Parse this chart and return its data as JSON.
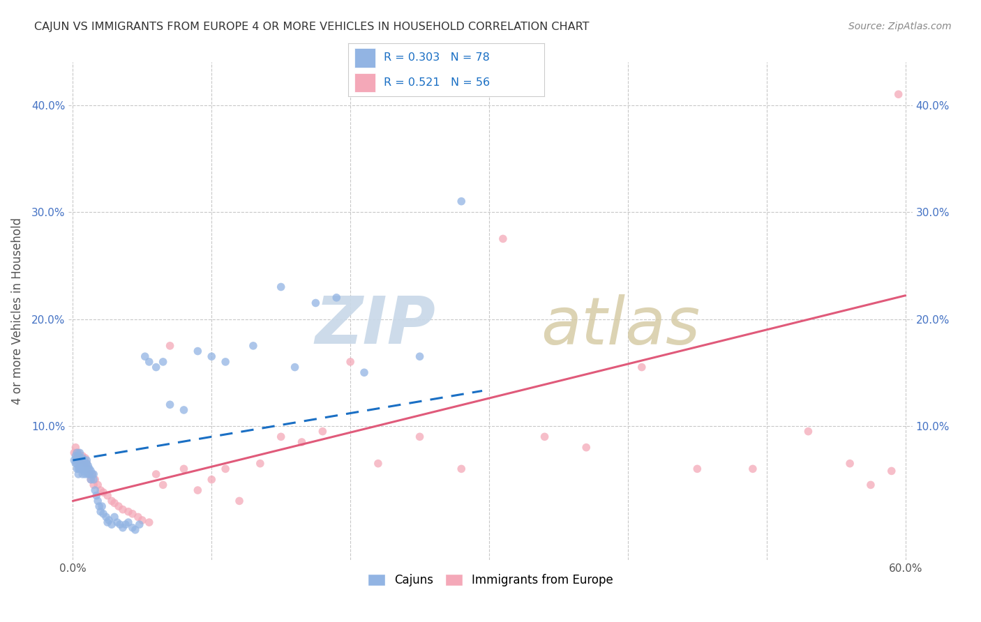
{
  "title": "CAJUN VS IMMIGRANTS FROM EUROPE 4 OR MORE VEHICLES IN HOUSEHOLD CORRELATION CHART",
  "source": "Source: ZipAtlas.com",
  "ylabel": "4 or more Vehicles in Household",
  "xmin": 0.0,
  "xmax": 0.6,
  "ymin": -0.025,
  "ymax": 0.44,
  "x_tick_positions": [
    0.0,
    0.1,
    0.2,
    0.3,
    0.4,
    0.5,
    0.6
  ],
  "x_tick_labels": [
    "0.0%",
    "",
    "",
    "",
    "",
    "",
    "60.0%"
  ],
  "y_tick_positions": [
    0.0,
    0.1,
    0.2,
    0.3,
    0.4
  ],
  "y_tick_labels": [
    "",
    "10.0%",
    "20.0%",
    "30.0%",
    "40.0%"
  ],
  "cajun_R": 0.303,
  "cajun_N": 78,
  "immigrants_R": 0.521,
  "immigrants_N": 56,
  "cajun_color": "#92b4e3",
  "immigrants_color": "#f4a8b8",
  "cajun_line_color": "#1a6fc4",
  "immigrants_line_color": "#e05a7a",
  "background_color": "#ffffff",
  "grid_color": "#c8c8c8",
  "cajun_line_intercept": 0.068,
  "cajun_line_slope": 0.22,
  "cajun_line_xend": 0.295,
  "immigrants_line_intercept": 0.03,
  "immigrants_line_slope": 0.32,
  "immigrants_line_xend": 0.6,
  "cajun_scatter_x": [
    0.001,
    0.002,
    0.002,
    0.003,
    0.003,
    0.003,
    0.003,
    0.004,
    0.004,
    0.004,
    0.004,
    0.005,
    0.005,
    0.005,
    0.005,
    0.005,
    0.006,
    0.006,
    0.006,
    0.007,
    0.007,
    0.007,
    0.007,
    0.008,
    0.008,
    0.008,
    0.009,
    0.009,
    0.009,
    0.01,
    0.01,
    0.01,
    0.011,
    0.011,
    0.012,
    0.012,
    0.013,
    0.013,
    0.014,
    0.015,
    0.015,
    0.016,
    0.017,
    0.018,
    0.019,
    0.02,
    0.021,
    0.022,
    0.024,
    0.025,
    0.026,
    0.028,
    0.03,
    0.032,
    0.034,
    0.036,
    0.038,
    0.04,
    0.043,
    0.045,
    0.048,
    0.052,
    0.055,
    0.06,
    0.065,
    0.07,
    0.08,
    0.09,
    0.1,
    0.11,
    0.13,
    0.15,
    0.16,
    0.175,
    0.19,
    0.21,
    0.25,
    0.28
  ],
  "cajun_scatter_y": [
    0.068,
    0.072,
    0.065,
    0.075,
    0.07,
    0.065,
    0.06,
    0.068,
    0.072,
    0.06,
    0.055,
    0.068,
    0.065,
    0.075,
    0.06,
    0.07,
    0.065,
    0.068,
    0.06,
    0.065,
    0.07,
    0.06,
    0.055,
    0.065,
    0.068,
    0.058,
    0.065,
    0.06,
    0.055,
    0.065,
    0.06,
    0.068,
    0.063,
    0.055,
    0.06,
    0.055,
    0.058,
    0.05,
    0.055,
    0.055,
    0.05,
    0.04,
    0.035,
    0.03,
    0.025,
    0.02,
    0.025,
    0.018,
    0.015,
    0.01,
    0.012,
    0.008,
    0.015,
    0.01,
    0.008,
    0.005,
    0.008,
    0.01,
    0.005,
    0.003,
    0.008,
    0.165,
    0.16,
    0.155,
    0.16,
    0.12,
    0.115,
    0.17,
    0.165,
    0.16,
    0.175,
    0.23,
    0.155,
    0.215,
    0.22,
    0.15,
    0.165,
    0.31
  ],
  "immigrants_scatter_x": [
    0.001,
    0.002,
    0.003,
    0.004,
    0.005,
    0.006,
    0.007,
    0.008,
    0.009,
    0.01,
    0.011,
    0.012,
    0.013,
    0.014,
    0.015,
    0.016,
    0.018,
    0.02,
    0.022,
    0.025,
    0.028,
    0.03,
    0.033,
    0.036,
    0.04,
    0.043,
    0.047,
    0.05,
    0.055,
    0.06,
    0.065,
    0.07,
    0.08,
    0.09,
    0.1,
    0.11,
    0.12,
    0.135,
    0.15,
    0.165,
    0.18,
    0.2,
    0.22,
    0.25,
    0.28,
    0.31,
    0.34,
    0.37,
    0.41,
    0.45,
    0.49,
    0.53,
    0.56,
    0.575,
    0.59,
    0.595
  ],
  "immigrants_scatter_y": [
    0.075,
    0.08,
    0.075,
    0.075,
    0.07,
    0.068,
    0.072,
    0.065,
    0.07,
    0.065,
    0.06,
    0.055,
    0.05,
    0.055,
    0.045,
    0.05,
    0.045,
    0.04,
    0.038,
    0.035,
    0.03,
    0.028,
    0.025,
    0.022,
    0.02,
    0.018,
    0.015,
    0.012,
    0.01,
    0.055,
    0.045,
    0.175,
    0.06,
    0.04,
    0.05,
    0.06,
    0.03,
    0.065,
    0.09,
    0.085,
    0.095,
    0.16,
    0.065,
    0.09,
    0.06,
    0.275,
    0.09,
    0.08,
    0.155,
    0.06,
    0.06,
    0.095,
    0.065,
    0.045,
    0.058,
    0.41
  ]
}
